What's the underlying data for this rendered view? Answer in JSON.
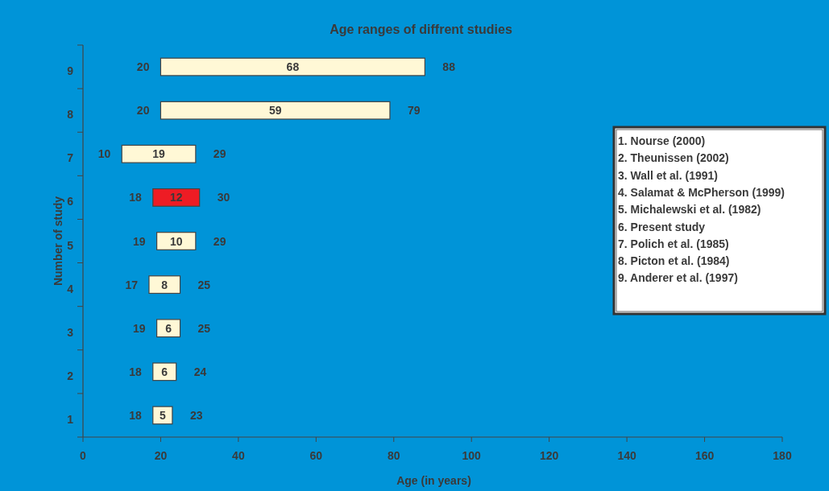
{
  "chart_data": {
    "type": "bar",
    "orientation": "horizontal",
    "title": "Age ranges of diffrent studies",
    "xlabel": "Age (in years)",
    "ylabel": "Number of study",
    "categories": [
      "9",
      "8",
      "7",
      "6",
      "5",
      "4",
      "3",
      "2",
      "1"
    ],
    "base": [
      20,
      20,
      10,
      18,
      19,
      17,
      19,
      18,
      18
    ],
    "values": [
      68,
      59,
      19,
      12,
      10,
      8,
      6,
      6,
      5
    ],
    "colors": [
      "#fff8d6",
      "#fff8d6",
      "#fff8d6",
      "#ee1c24",
      "#fff8d6",
      "#fff8d6",
      "#fff8d6",
      "#fff8d6",
      "#fff8d6"
    ],
    "data_labels": true,
    "xlim": [
      0,
      180
    ],
    "xticks": [
      0,
      20,
      40,
      60,
      80,
      100,
      120,
      140,
      160,
      180
    ],
    "grid": false,
    "annotations": [
      {
        "text": "20",
        "x": 20,
        "y": "9"
      },
      {
        "text": "88",
        "x": 88,
        "y": "9"
      },
      {
        "text": "20",
        "x": 20,
        "y": "8"
      },
      {
        "text": "79",
        "x": 79,
        "y": "8"
      },
      {
        "text": "10",
        "x": 10,
        "y": "7"
      },
      {
        "text": "29",
        "x": 29,
        "y": "7"
      },
      {
        "text": "18",
        "x": 18,
        "y": "6"
      },
      {
        "text": "30",
        "x": 30,
        "y": "6"
      },
      {
        "text": "19",
        "x": 19,
        "y": "5"
      },
      {
        "text": "29",
        "x": 29,
        "y": "5"
      },
      {
        "text": "17",
        "x": 17,
        "y": "4"
      },
      {
        "text": "25",
        "x": 25,
        "y": "4"
      },
      {
        "text": "19",
        "x": 19,
        "y": "3"
      },
      {
        "text": "25",
        "x": 25,
        "y": "3"
      },
      {
        "text": "18",
        "x": 18,
        "y": "2"
      },
      {
        "text": "24",
        "x": 24,
        "y": "2"
      },
      {
        "text": "18",
        "x": 18,
        "y": "1"
      },
      {
        "text": "23",
        "x": 23,
        "y": "1"
      },
      "1. Nourse (2000)",
      "2. Theunissen (2002)",
      "3. Wall et al. (1991)",
      "4. Salamat & McPherson (1999)",
      "5. Michalewski et al. (1982)",
      "6. Present study",
      "7. Polich et al. (1985)",
      "8. Picton et al. (1984)",
      "9. Anderer et al. (1997)"
    ]
  }
}
